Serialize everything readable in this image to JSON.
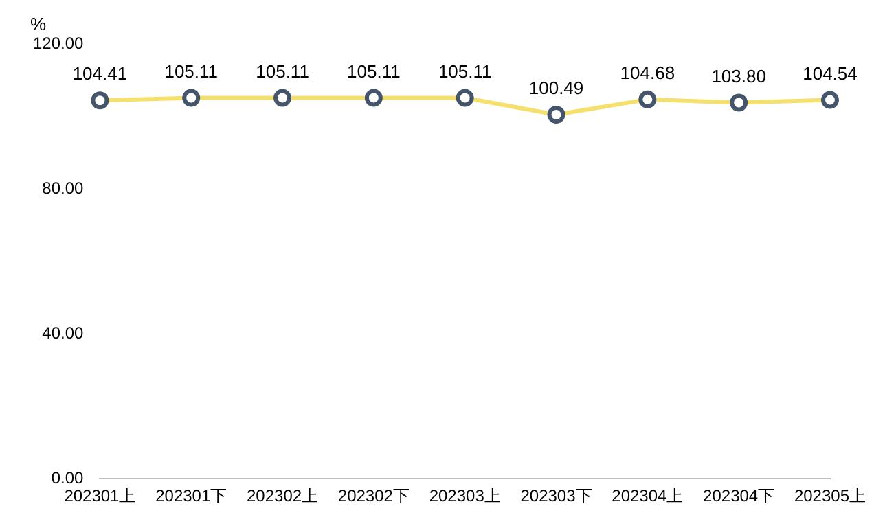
{
  "chart_data": {
    "type": "line",
    "ylabel": "%",
    "categories": [
      "202301上",
      "202301下",
      "202302上",
      "202302下",
      "202303上",
      "202303下",
      "202304上",
      "202304下",
      "202305上"
    ],
    "series": [
      {
        "color": "#f5e06e",
        "values": [
          104.41,
          105.11,
          105.11,
          105.11,
          105.11,
          100.49,
          104.68,
          103.8,
          104.54
        ],
        "value_labels": [
          "104.41",
          "105.11",
          "105.11",
          "105.11",
          "105.11",
          "100.49",
          "104.68",
          "103.80",
          "104.54"
        ]
      }
    ],
    "ylim": [
      0,
      120
    ],
    "yticks": [
      {
        "value": 0,
        "label": "0.00"
      },
      {
        "value": 40,
        "label": "40.00"
      },
      {
        "value": 80,
        "label": "80.00"
      },
      {
        "value": 120,
        "label": "120.00"
      }
    ],
    "grid": false,
    "legend": false,
    "marker": "circle",
    "line_style": "solid"
  }
}
